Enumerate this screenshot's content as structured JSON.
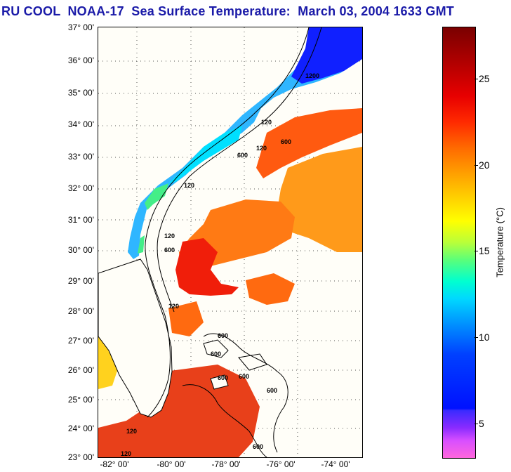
{
  "title": "RU COOL  NOAA-17  Sea Surface Temperature:  March 03, 2004 1633 GMT",
  "map": {
    "lat_labels": [
      "37° 00'",
      "36° 00'",
      "35° 00'",
      "34° 00'",
      "33° 00'",
      "32° 00'",
      "31° 00'",
      "30° 00'",
      "29° 00'",
      "28° 00'",
      "27° 00'",
      "26° 00'",
      "25° 00'",
      "24° 00'",
      "23° 00'"
    ],
    "lon_labels": [
      "-82° 00'",
      "-80° 00'",
      "-78° 00'",
      "-76° 00'",
      "-74° 00'"
    ],
    "isobath_labels": [
      "120",
      "600",
      "120",
      "600",
      "120",
      "120",
      "600",
      "600",
      "600",
      "600",
      "120",
      "600",
      "600",
      "120",
      "120",
      "600",
      "1200"
    ]
  },
  "colorbar": {
    "title": "Temperature (°C)",
    "ticks": [
      "25",
      "20",
      "15",
      "10",
      "5"
    ]
  }
}
